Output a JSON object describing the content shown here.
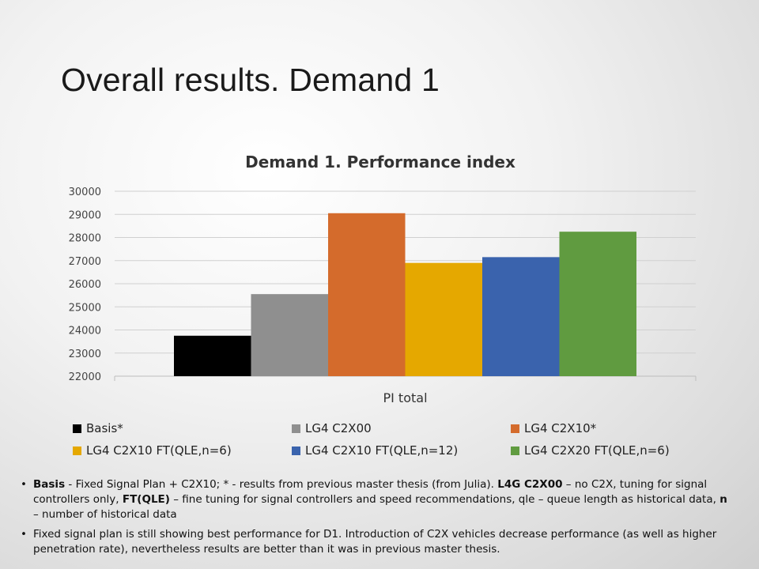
{
  "slide": {
    "title": "Overall results. Demand 1"
  },
  "chart_data": {
    "type": "bar",
    "title": "Demand 1. Performance index",
    "categories": [
      "PI total"
    ],
    "series": [
      {
        "name": "Basis*",
        "values": [
          23750
        ],
        "color": "#000000"
      },
      {
        "name": "LG4 C2X00",
        "values": [
          25550
        ],
        "color": "#8f8f8f"
      },
      {
        "name": "LG4 C2X10*",
        "values": [
          29050
        ],
        "color": "#d46b2c"
      },
      {
        "name": "LG4 C2X10 FT(QLE,n=6)",
        "values": [
          26900
        ],
        "color": "#e5a800"
      },
      {
        "name": "LG4 C2X10 FT(QLE,n=12)",
        "values": [
          27150
        ],
        "color": "#3a63ad"
      },
      {
        "name": "LG4 C2X20 FT(QLE,n=6)",
        "values": [
          28250
        ],
        "color": "#609b40"
      }
    ],
    "ylim": [
      22000,
      30000
    ],
    "yticks": [
      "30000",
      "29000",
      "28000",
      "27000",
      "26000",
      "25000",
      "24000",
      "23000",
      "22000"
    ],
    "grid": true,
    "legend_position": "bottom"
  },
  "notes": [
    {
      "segments": [
        {
          "text": "Basis",
          "bold": true
        },
        {
          "text": " - Fixed Signal Plan + C2X10; * - results from previous master thesis (from Julia).  ",
          "bold": false
        },
        {
          "text": "L4G C2X00",
          "bold": true
        },
        {
          "text": " – no C2X, tuning for signal controllers only, ",
          "bold": false
        },
        {
          "text": "FT(QLE)",
          "bold": true
        },
        {
          "text": " – fine tuning for signal controllers and  speed recommendations, qle – queue length as historical data, ",
          "bold": false
        },
        {
          "text": "n",
          "bold": true
        },
        {
          "text": " – number of historical data",
          "bold": false
        }
      ]
    },
    {
      "segments": [
        {
          "text": "Fixed signal plan is still showing best performance for D1. Introduction of C2X vehicles decrease performance (as well as higher penetration rate), nevertheless results are better than it was in previous master thesis.",
          "bold": false
        }
      ]
    }
  ],
  "bullet_char": "•"
}
